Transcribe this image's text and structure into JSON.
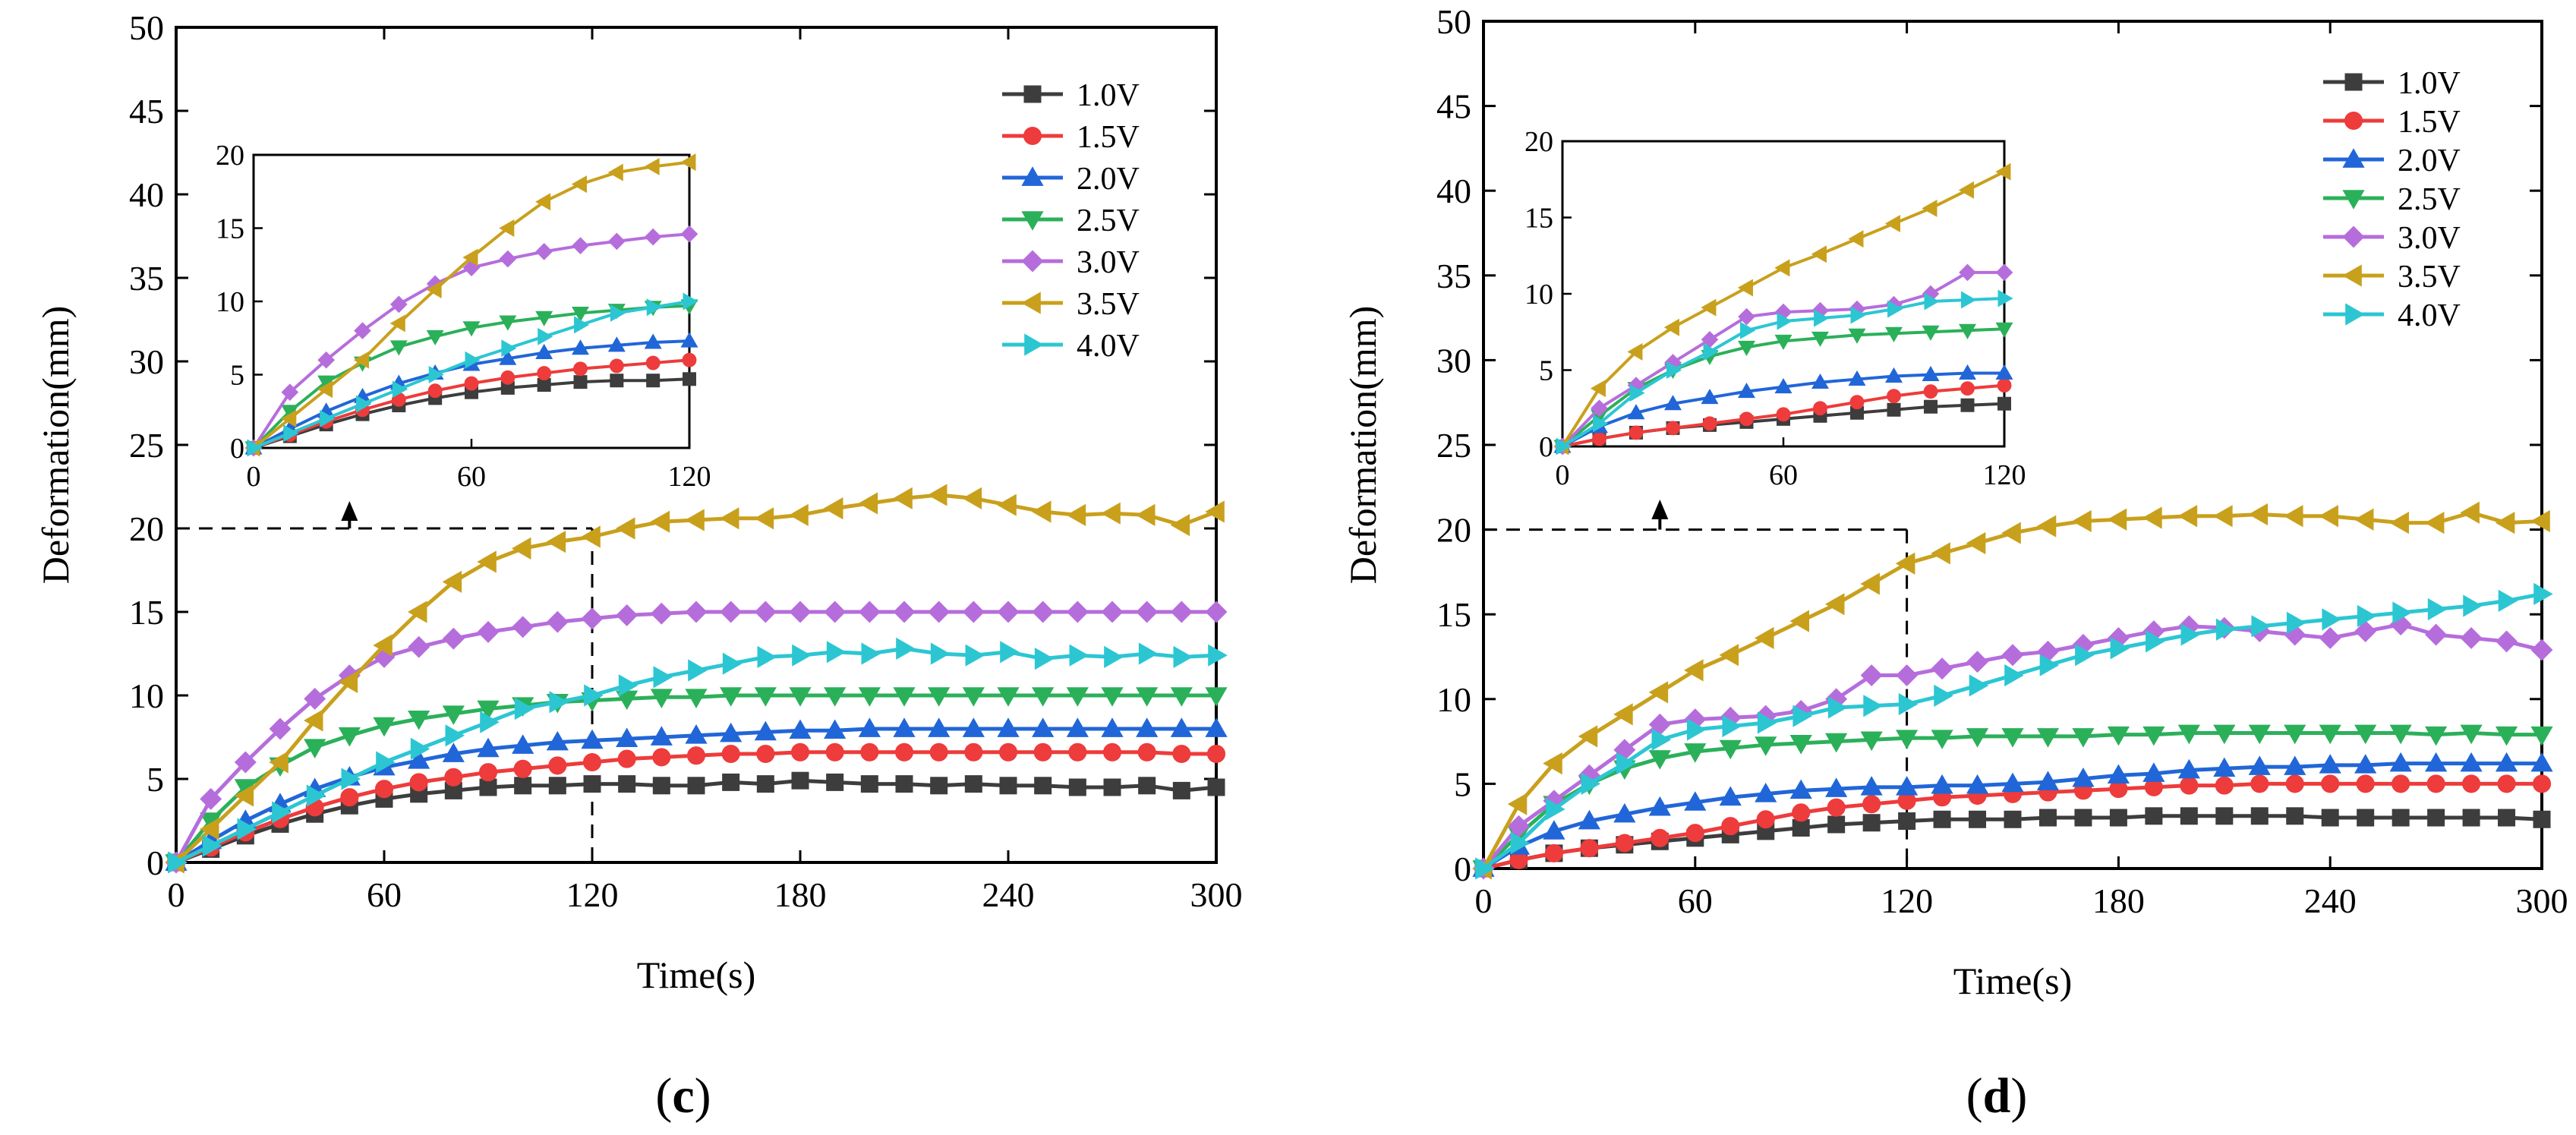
{
  "colors": {
    "1.0V": "#3d3d3d",
    "1.5V": "#ee3b3b",
    "2.0V": "#2166d8",
    "2.5V": "#2bb05a",
    "3.0V": "#b66ddc",
    "3.5V": "#c9a01c",
    "4.0V": "#2cc6d3"
  },
  "markers": {
    "1.0V": "square",
    "1.5V": "circle",
    "2.0V": "triangle-up",
    "2.5V": "triangle-down",
    "3.0V": "diamond",
    "3.5V": "triangle-left",
    "4.0V": "triangle-right"
  },
  "chart_data": [
    {
      "type": "line",
      "panel": "c",
      "panel_label": "(c)",
      "panel_letter": "c",
      "xlabel": "Time(s)",
      "ylabel": "Deformation(mm)",
      "xlim": [
        0,
        300
      ],
      "ylim": [
        0,
        50
      ],
      "x_ticks": [
        0,
        60,
        120,
        180,
        240,
        300
      ],
      "y_ticks": [
        0,
        5,
        10,
        15,
        20,
        25,
        30,
        35,
        40,
        45,
        50
      ],
      "legend": "top-right",
      "grid": false,
      "annotation": {
        "dashed_guides": {
          "x": 120,
          "y": 20
        },
        "arrow_to_inset_at_x": 50
      },
      "x": [
        0,
        10,
        20,
        30,
        40,
        50,
        60,
        70,
        80,
        90,
        100,
        110,
        120,
        130,
        140,
        150,
        160,
        170,
        180,
        190,
        200,
        210,
        220,
        230,
        240,
        250,
        260,
        270,
        280,
        290,
        300
      ],
      "series": [
        {
          "name": "1.0V",
          "values": [
            0,
            0.8,
            1.6,
            2.3,
            2.9,
            3.4,
            3.8,
            4.1,
            4.3,
            4.5,
            4.6,
            4.6,
            4.7,
            4.7,
            4.6,
            4.6,
            4.8,
            4.7,
            4.9,
            4.8,
            4.7,
            4.7,
            4.6,
            4.7,
            4.6,
            4.6,
            4.5,
            4.5,
            4.6,
            4.3,
            4.5
          ]
        },
        {
          "name": "1.5V",
          "values": [
            0,
            0.9,
            1.8,
            2.6,
            3.3,
            3.9,
            4.4,
            4.8,
            5.1,
            5.4,
            5.6,
            5.8,
            6.0,
            6.2,
            6.3,
            6.4,
            6.5,
            6.5,
            6.6,
            6.6,
            6.6,
            6.6,
            6.6,
            6.6,
            6.6,
            6.6,
            6.6,
            6.6,
            6.6,
            6.5,
            6.5
          ]
        },
        {
          "name": "2.0V",
          "values": [
            0,
            1.3,
            2.5,
            3.5,
            4.4,
            5.1,
            5.7,
            6.1,
            6.5,
            6.8,
            7.0,
            7.2,
            7.3,
            7.4,
            7.5,
            7.6,
            7.7,
            7.8,
            7.9,
            7.9,
            8.0,
            8.0,
            8.0,
            8.0,
            8.0,
            8.0,
            8.0,
            8.0,
            8.0,
            8.0,
            8.0
          ]
        },
        {
          "name": "2.5V",
          "values": [
            0,
            2.5,
            4.5,
            5.8,
            6.9,
            7.6,
            8.2,
            8.6,
            8.9,
            9.2,
            9.4,
            9.6,
            9.7,
            9.8,
            9.9,
            9.9,
            10.0,
            10.0,
            10.0,
            10.0,
            10.0,
            10.0,
            10.0,
            10.0,
            10.0,
            10.0,
            10.0,
            10.0,
            10.0,
            10.0,
            10.0
          ]
        },
        {
          "name": "3.0V",
          "values": [
            0,
            3.8,
            6.0,
            8.0,
            9.8,
            11.2,
            12.3,
            12.9,
            13.4,
            13.8,
            14.1,
            14.4,
            14.6,
            14.8,
            14.9,
            15.0,
            15.0,
            15.0,
            15.0,
            15.0,
            15.0,
            15.0,
            15.0,
            15.0,
            15.0,
            15.0,
            15.0,
            15.0,
            15.0,
            15.0,
            15.0
          ]
        },
        {
          "name": "3.5V",
          "values": [
            0,
            2.0,
            4.0,
            6.0,
            8.5,
            10.8,
            13.0,
            15.0,
            16.8,
            18.0,
            18.8,
            19.2,
            19.5,
            20.0,
            20.4,
            20.5,
            20.6,
            20.6,
            20.8,
            21.2,
            21.5,
            21.8,
            22.0,
            21.8,
            21.4,
            21.0,
            20.8,
            20.9,
            20.8,
            20.2,
            21.0
          ]
        },
        {
          "name": "4.0V",
          "values": [
            0,
            1.0,
            2.0,
            3.0,
            4.0,
            5.0,
            6.0,
            6.8,
            7.6,
            8.4,
            9.2,
            9.6,
            10.0,
            10.6,
            11.1,
            11.5,
            11.9,
            12.3,
            12.4,
            12.6,
            12.5,
            12.8,
            12.5,
            12.4,
            12.6,
            12.2,
            12.4,
            12.3,
            12.5,
            12.3,
            12.4
          ]
        }
      ],
      "inset": {
        "xlim": [
          0,
          120
        ],
        "ylim": [
          0,
          20
        ],
        "x_ticks": [
          0,
          60,
          120
        ],
        "y_ticks": [
          0,
          5,
          10,
          15,
          20
        ],
        "x": [
          0,
          10,
          20,
          30,
          40,
          50,
          60,
          70,
          80,
          90,
          100,
          110,
          120
        ],
        "series": [
          {
            "name": "1.0V",
            "values": [
              0,
              0.8,
              1.6,
              2.3,
              2.9,
              3.4,
              3.8,
              4.1,
              4.3,
              4.5,
              4.6,
              4.6,
              4.7
            ]
          },
          {
            "name": "1.5V",
            "values": [
              0,
              0.9,
              1.8,
              2.6,
              3.3,
              3.9,
              4.4,
              4.8,
              5.1,
              5.4,
              5.6,
              5.8,
              6.0
            ]
          },
          {
            "name": "2.0V",
            "values": [
              0,
              1.3,
              2.5,
              3.5,
              4.4,
              5.1,
              5.7,
              6.1,
              6.5,
              6.8,
              7.0,
              7.2,
              7.3
            ]
          },
          {
            "name": "2.5V",
            "values": [
              0,
              2.5,
              4.5,
              5.8,
              6.9,
              7.6,
              8.2,
              8.6,
              8.9,
              9.2,
              9.4,
              9.6,
              9.7
            ]
          },
          {
            "name": "3.0V",
            "values": [
              0,
              3.8,
              6.0,
              8.0,
              9.8,
              11.2,
              12.3,
              12.9,
              13.4,
              13.8,
              14.1,
              14.4,
              14.6
            ]
          },
          {
            "name": "3.5V",
            "values": [
              0,
              2.0,
              4.0,
              6.0,
              8.5,
              10.8,
              13.0,
              15.0,
              16.8,
              18.0,
              18.8,
              19.2,
              19.5
            ]
          },
          {
            "name": "4.0V",
            "values": [
              0,
              1.0,
              2.0,
              3.0,
              4.0,
              5.0,
              6.0,
              6.8,
              7.6,
              8.4,
              9.2,
              9.6,
              10.0
            ]
          }
        ]
      }
    },
    {
      "type": "line",
      "panel": "d",
      "panel_label": "(d)",
      "panel_letter": "d",
      "xlabel": "Time(s)",
      "ylabel": "Deformation(mm)",
      "xlim": [
        0,
        300
      ],
      "ylim": [
        0,
        50
      ],
      "x_ticks": [
        0,
        60,
        120,
        180,
        240,
        300
      ],
      "y_ticks": [
        0,
        5,
        10,
        15,
        20,
        25,
        30,
        35,
        40,
        45,
        50
      ],
      "legend": "top-right",
      "grid": false,
      "annotation": {
        "dashed_guides": {
          "x": 120,
          "y": 20
        },
        "arrow_to_inset_at_x": 50
      },
      "x": [
        0,
        10,
        20,
        30,
        40,
        50,
        60,
        70,
        80,
        90,
        100,
        110,
        120,
        130,
        140,
        150,
        160,
        170,
        180,
        190,
        200,
        210,
        220,
        230,
        240,
        250,
        260,
        270,
        280,
        290,
        300
      ],
      "series": [
        {
          "name": "1.0V",
          "values": [
            0,
            0.5,
            0.9,
            1.2,
            1.4,
            1.6,
            1.8,
            2.0,
            2.2,
            2.4,
            2.6,
            2.7,
            2.8,
            2.9,
            2.9,
            2.9,
            3.0,
            3.0,
            3.0,
            3.1,
            3.1,
            3.1,
            3.1,
            3.1,
            3.0,
            3.0,
            3.0,
            3.0,
            3.0,
            3.0,
            2.9
          ]
        },
        {
          "name": "1.5V",
          "values": [
            0,
            0.5,
            0.9,
            1.2,
            1.5,
            1.8,
            2.1,
            2.5,
            2.9,
            3.3,
            3.6,
            3.8,
            4.0,
            4.2,
            4.3,
            4.4,
            4.5,
            4.6,
            4.7,
            4.8,
            4.9,
            4.9,
            5.0,
            5.0,
            5.0,
            5.0,
            5.0,
            5.0,
            5.0,
            5.0,
            5.0
          ]
        },
        {
          "name": "2.0V",
          "values": [
            0,
            1.3,
            2.2,
            2.8,
            3.2,
            3.6,
            3.9,
            4.2,
            4.4,
            4.6,
            4.7,
            4.8,
            4.8,
            4.9,
            4.9,
            5.0,
            5.1,
            5.3,
            5.5,
            5.6,
            5.8,
            5.9,
            6.0,
            6.0,
            6.1,
            6.1,
            6.2,
            6.2,
            6.2,
            6.2,
            6.2
          ]
        },
        {
          "name": "2.5V",
          "values": [
            0,
            2.0,
            3.8,
            5.0,
            5.9,
            6.5,
            6.9,
            7.1,
            7.3,
            7.4,
            7.5,
            7.6,
            7.7,
            7.7,
            7.8,
            7.8,
            7.8,
            7.8,
            7.9,
            7.9,
            8.0,
            8.0,
            8.0,
            8.0,
            8.0,
            8.0,
            8.0,
            7.9,
            8.0,
            7.9,
            7.9
          ]
        },
        {
          "name": "3.0V",
          "values": [
            0,
            2.5,
            4.0,
            5.5,
            7.0,
            8.5,
            8.8,
            8.9,
            9.0,
            9.3,
            10.0,
            11.4,
            11.4,
            11.8,
            12.2,
            12.6,
            12.8,
            13.2,
            13.6,
            14.0,
            14.3,
            14.2,
            14.0,
            13.8,
            13.6,
            14.0,
            14.4,
            13.8,
            13.6,
            13.4,
            12.9
          ]
        },
        {
          "name": "3.5V",
          "values": [
            0,
            3.8,
            6.2,
            7.8,
            9.1,
            10.4,
            11.7,
            12.6,
            13.6,
            14.6,
            15.6,
            16.8,
            18.0,
            18.6,
            19.2,
            19.8,
            20.2,
            20.5,
            20.6,
            20.7,
            20.8,
            20.8,
            20.9,
            20.8,
            20.8,
            20.6,
            20.4,
            20.4,
            21.0,
            20.4,
            20.5
          ]
        },
        {
          "name": "4.0V",
          "values": [
            0,
            1.5,
            3.5,
            5.0,
            6.2,
            7.6,
            8.2,
            8.4,
            8.6,
            9.0,
            9.5,
            9.6,
            9.7,
            10.2,
            10.8,
            11.4,
            12.0,
            12.6,
            13.0,
            13.4,
            13.8,
            14.1,
            14.3,
            14.5,
            14.7,
            14.9,
            15.1,
            15.3,
            15.5,
            15.8,
            16.2
          ]
        }
      ],
      "inset": {
        "xlim": [
          0,
          120
        ],
        "ylim": [
          0,
          20
        ],
        "x_ticks": [
          0,
          60,
          120
        ],
        "y_ticks": [
          0,
          5,
          10,
          15,
          20
        ],
        "x": [
          0,
          10,
          20,
          30,
          40,
          50,
          60,
          70,
          80,
          90,
          100,
          110,
          120
        ],
        "series": [
          {
            "name": "1.0V",
            "values": [
              0,
              0.5,
              0.9,
              1.2,
              1.4,
              1.6,
              1.8,
              2.0,
              2.2,
              2.4,
              2.6,
              2.7,
              2.8
            ]
          },
          {
            "name": "1.5V",
            "values": [
              0,
              0.5,
              0.9,
              1.2,
              1.5,
              1.8,
              2.1,
              2.5,
              2.9,
              3.3,
              3.6,
              3.8,
              4.0
            ]
          },
          {
            "name": "2.0V",
            "values": [
              0,
              1.3,
              2.2,
              2.8,
              3.2,
              3.6,
              3.9,
              4.2,
              4.4,
              4.6,
              4.7,
              4.8,
              4.8
            ]
          },
          {
            "name": "2.5V",
            "values": [
              0,
              2.0,
              3.8,
              5.0,
              5.9,
              6.5,
              6.9,
              7.1,
              7.3,
              7.4,
              7.5,
              7.6,
              7.7
            ]
          },
          {
            "name": "3.0V",
            "values": [
              0,
              2.5,
              4.0,
              5.5,
              7.0,
              8.5,
              8.8,
              8.9,
              9.0,
              9.3,
              10.0,
              11.4,
              11.4
            ]
          },
          {
            "name": "3.5V",
            "values": [
              0,
              3.8,
              6.2,
              7.8,
              9.1,
              10.4,
              11.7,
              12.6,
              13.6,
              14.6,
              15.6,
              16.8,
              18.0
            ]
          },
          {
            "name": "4.0V",
            "values": [
              0,
              1.5,
              3.5,
              5.0,
              6.2,
              7.6,
              8.2,
              8.4,
              8.6,
              9.0,
              9.5,
              9.6,
              9.7
            ]
          }
        ]
      }
    }
  ]
}
